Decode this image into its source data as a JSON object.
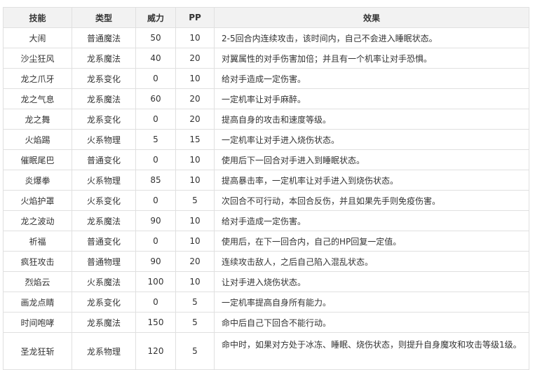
{
  "headers": [
    "技能",
    "类型",
    "威力",
    "PP",
    "效果"
  ],
  "rows": [
    {
      "name": "大闹",
      "type": "普通魔法",
      "power": "50",
      "pp": "10",
      "effect": "2-5回合内连续攻击，该时间内，自己不会进入睡眠状态。"
    },
    {
      "name": "沙尘狂风",
      "type": "龙系魔法",
      "power": "40",
      "pp": "20",
      "effect": "对翼属性的对手伤害加倍；并且有一个机率让对手恐惧。"
    },
    {
      "name": "龙之爪牙",
      "type": "龙系变化",
      "power": "0",
      "pp": "10",
      "effect": "给对手造成一定伤害。"
    },
    {
      "name": "龙之气息",
      "type": "龙系魔法",
      "power": "60",
      "pp": "20",
      "effect": "一定机率让对手麻醉。"
    },
    {
      "name": "龙之舞",
      "type": "龙系变化",
      "power": "0",
      "pp": "20",
      "effect": "提高自身的攻击和速度等级。"
    },
    {
      "name": "火焰踢",
      "type": "火系物理",
      "power": "5",
      "pp": "15",
      "effect": "一定机率让对手进入烧伤状态。"
    },
    {
      "name": "催眠尾巴",
      "type": "普通变化",
      "power": "0",
      "pp": "10",
      "effect": "使用后下一回合对手进入到睡眠状态。"
    },
    {
      "name": "炎爆拳",
      "type": "火系物理",
      "power": "85",
      "pp": "10",
      "effect": "提高暴击率，一定机率让对手进入到烧伤状态。"
    },
    {
      "name": "火焰护罩",
      "type": "火系变化",
      "power": "0",
      "pp": "5",
      "effect": "次回合不可行动，本回合反伤，并且如果先手则免疫伤害。"
    },
    {
      "name": "龙之波动",
      "type": "龙系魔法",
      "power": "90",
      "pp": "10",
      "effect": "给对手造成一定伤害。"
    },
    {
      "name": "祈福",
      "type": "普通变化",
      "power": "0",
      "pp": "10",
      "effect": "使用后，在下一回合内，自己的HP回复一定值。"
    },
    {
      "name": "疯狂攻击",
      "type": "普通物理",
      "power": "90",
      "pp": "20",
      "effect": "连续攻击敌人，之后自己陷入混乱状态。"
    },
    {
      "name": "烈焰云",
      "type": "火系魔法",
      "power": "100",
      "pp": "10",
      "effect": "让对手进入烧伤状态。"
    },
    {
      "name": "画龙点睛",
      "type": "龙系变化",
      "power": "0",
      "pp": "5",
      "effect": "一定机率提高自身所有能力。"
    },
    {
      "name": "时间咆哮",
      "type": "龙系魔法",
      "power": "150",
      "pp": "5",
      "effect": "命中后自己下回合不能行动。"
    },
    {
      "name": "圣龙狂斩",
      "type": "龙系物理",
      "power": "120",
      "pp": "5",
      "effect": "命中时，如果对方处于冰冻、睡眠、烧伤状态，则提升自身魔攻和攻击等级1级。"
    }
  ]
}
